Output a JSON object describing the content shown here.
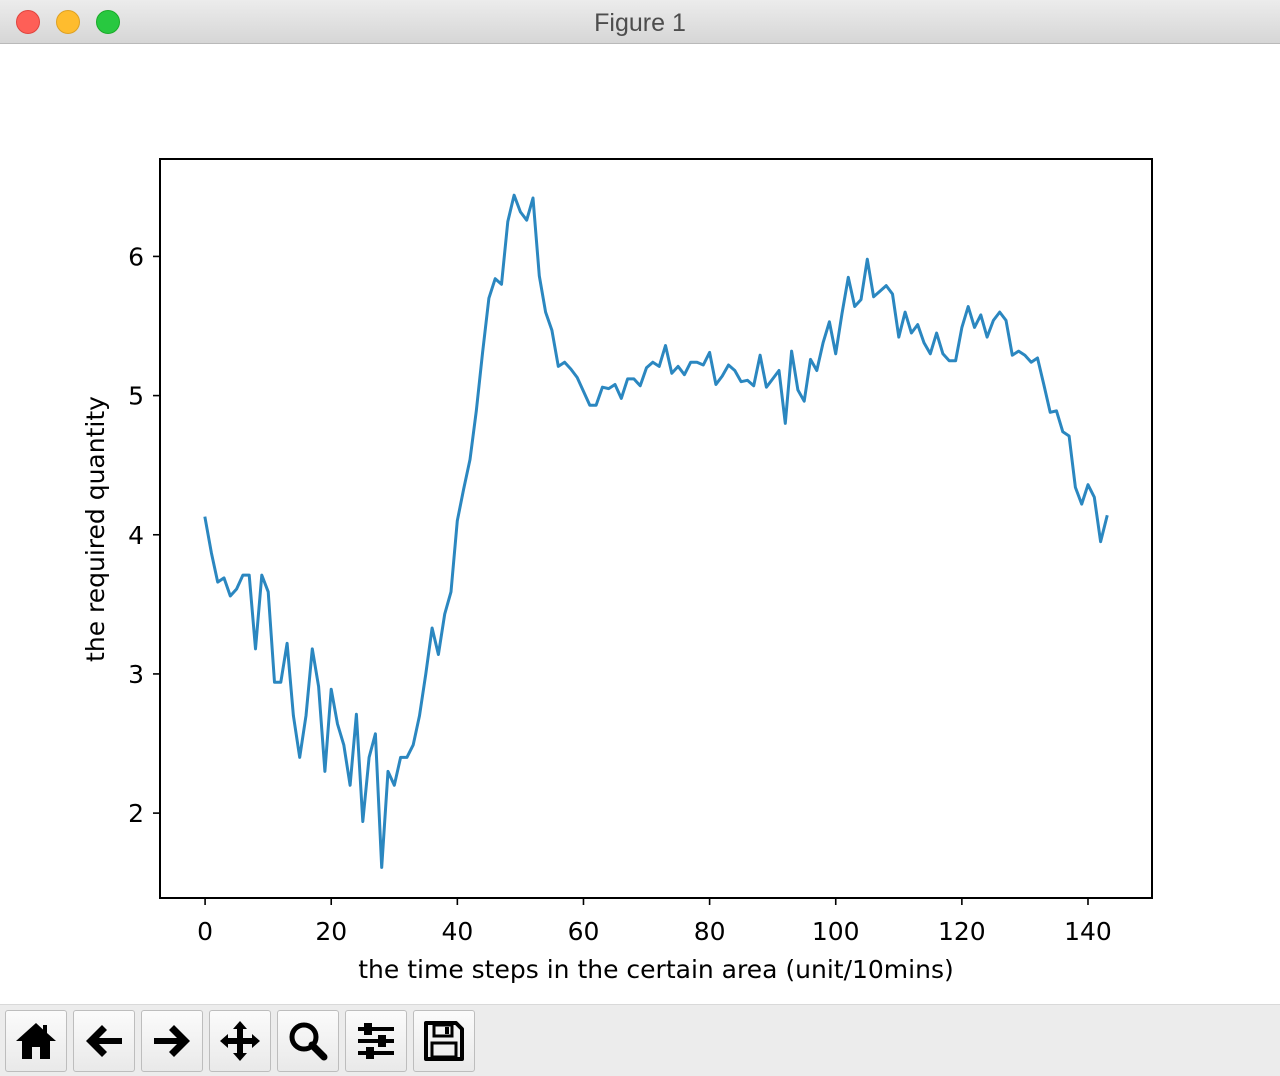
{
  "window": {
    "title": "Figure 1"
  },
  "toolbar": {
    "buttons": [
      {
        "icon": "home-icon"
      },
      {
        "icon": "back-arrow-icon"
      },
      {
        "icon": "forward-arrow-icon"
      },
      {
        "icon": "pan-icon"
      },
      {
        "icon": "zoom-icon"
      },
      {
        "icon": "subplots-icon"
      },
      {
        "icon": "save-icon"
      }
    ]
  },
  "chart_data": {
    "type": "line",
    "title": "",
    "xlabel": "the time steps in the certain area (unit/10mins)",
    "ylabel": "the required quantity",
    "xlim": [
      -7.15,
      150.15
    ],
    "ylim": [
      1.39,
      6.7
    ],
    "xticks": [
      0,
      20,
      40,
      60,
      80,
      100,
      120,
      140
    ],
    "yticks": [
      2,
      3,
      4,
      5,
      6
    ],
    "grid": false,
    "color": "#2b87c0",
    "series": [
      {
        "x": [
          0,
          1,
          2,
          3,
          4,
          5,
          6,
          7,
          8,
          9,
          10,
          11,
          12,
          13,
          14,
          15,
          16,
          17,
          18,
          19,
          20,
          21,
          22,
          23,
          24,
          25,
          26,
          27,
          28,
          29,
          30,
          31,
          32,
          33,
          34,
          35,
          36,
          37,
          38,
          39,
          40,
          41,
          42,
          43,
          44,
          45,
          46,
          47,
          48,
          49,
          50,
          51,
          52,
          53,
          54,
          55,
          56,
          57,
          58,
          59,
          60,
          61,
          62,
          63,
          64,
          65,
          66,
          67,
          68,
          69,
          70,
          71,
          72,
          73,
          74,
          75,
          76,
          77,
          78,
          79,
          80,
          81,
          82,
          83,
          84,
          85,
          86,
          87,
          88,
          89,
          90,
          91,
          92,
          93,
          94,
          95,
          96,
          97,
          98,
          99,
          100,
          101,
          102,
          103,
          104,
          105,
          106,
          107,
          108,
          109,
          110,
          111,
          112,
          113,
          114,
          115,
          116,
          117,
          118,
          119,
          120,
          121,
          122,
          123,
          124,
          125,
          126,
          127,
          128,
          129,
          130,
          131,
          132,
          133,
          134,
          135,
          136,
          137,
          138,
          139,
          140,
          141,
          142,
          143
        ],
        "values": [
          4.12,
          3.87,
          3.66,
          3.69,
          3.56,
          3.61,
          3.71,
          3.71,
          3.18,
          3.71,
          3.59,
          2.94,
          2.94,
          3.22,
          2.7,
          2.4,
          2.7,
          3.18,
          2.91,
          2.3,
          2.89,
          2.64,
          2.49,
          2.2,
          2.71,
          1.94,
          2.4,
          2.57,
          1.61,
          2.3,
          2.2,
          2.4,
          2.4,
          2.49,
          2.7,
          3.0,
          3.33,
          3.14,
          3.43,
          3.59,
          4.1,
          4.33,
          4.54,
          4.89,
          5.31,
          5.7,
          5.84,
          5.8,
          6.25,
          6.44,
          6.32,
          6.26,
          6.42,
          5.86,
          5.6,
          5.47,
          5.21,
          5.24,
          5.19,
          5.13,
          5.03,
          4.93,
          4.93,
          5.06,
          5.05,
          5.08,
          4.98,
          5.12,
          5.12,
          5.07,
          5.2,
          5.24,
          5.21,
          5.36,
          5.16,
          5.21,
          5.15,
          5.24,
          5.24,
          5.22,
          5.31,
          5.08,
          5.14,
          5.22,
          5.18,
          5.1,
          5.11,
          5.07,
          5.29,
          5.06,
          5.12,
          5.18,
          4.8,
          5.32,
          5.04,
          4.96,
          5.26,
          5.18,
          5.38,
          5.53,
          5.3,
          5.59,
          5.85,
          5.64,
          5.69,
          5.98,
          5.71,
          5.75,
          5.79,
          5.73,
          5.42,
          5.6,
          5.45,
          5.51,
          5.38,
          5.3,
          5.45,
          5.3,
          5.25,
          5.25,
          5.49,
          5.64,
          5.49,
          5.58,
          5.42,
          5.54,
          5.6,
          5.54,
          5.29,
          5.32,
          5.29,
          5.24,
          5.27,
          5.08,
          4.88,
          4.89,
          4.74,
          4.71,
          4.34,
          4.22,
          4.36,
          4.27,
          3.95,
          4.13
        ]
      }
    ]
  }
}
